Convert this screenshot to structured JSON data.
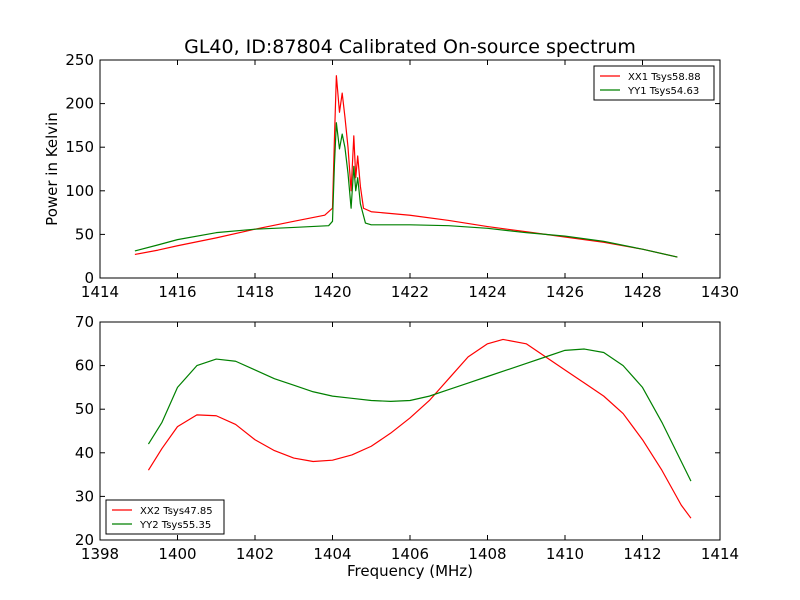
{
  "figure_title": "GL40, ID:87804 Calibrated On-source spectrum",
  "chart_data": [
    {
      "type": "line",
      "ylabel": "Power in Kelvin",
      "xlabel": "",
      "xlim": [
        1414,
        1430
      ],
      "ylim": [
        0,
        250
      ],
      "xticks": [
        1414,
        1416,
        1418,
        1420,
        1422,
        1424,
        1426,
        1428,
        1430
      ],
      "yticks": [
        0,
        50,
        100,
        150,
        200,
        250
      ],
      "grid": false,
      "legend_position": "top-right",
      "series": [
        {
          "name": "XX1 Tsys58.88",
          "color": "#ff0000",
          "points": [
            [
              1414.9,
              27
            ],
            [
              1415.5,
              32
            ],
            [
              1416.0,
              37
            ],
            [
              1417.0,
              46
            ],
            [
              1418.0,
              56
            ],
            [
              1419.0,
              65
            ],
            [
              1419.8,
              72
            ],
            [
              1420.0,
              80
            ],
            [
              1420.05,
              160
            ],
            [
              1420.1,
              232
            ],
            [
              1420.18,
              190
            ],
            [
              1420.25,
              212
            ],
            [
              1420.32,
              185
            ],
            [
              1420.4,
              150
            ],
            [
              1420.48,
              100
            ],
            [
              1420.55,
              163
            ],
            [
              1420.6,
              115
            ],
            [
              1420.65,
              140
            ],
            [
              1420.72,
              105
            ],
            [
              1420.8,
              80
            ],
            [
              1421.0,
              76
            ],
            [
              1422.0,
              72
            ],
            [
              1423.0,
              66
            ],
            [
              1424.0,
              59
            ],
            [
              1425.0,
              53
            ],
            [
              1426.0,
              47
            ],
            [
              1427.0,
              41
            ],
            [
              1428.0,
              33
            ],
            [
              1428.9,
              24
            ]
          ]
        },
        {
          "name": "YY1 Tsys54.63",
          "color": "#008000",
          "points": [
            [
              1414.9,
              31
            ],
            [
              1415.5,
              38
            ],
            [
              1416.0,
              44
            ],
            [
              1417.0,
              52
            ],
            [
              1418.0,
              56
            ],
            [
              1419.0,
              58
            ],
            [
              1419.9,
              60
            ],
            [
              1420.0,
              65
            ],
            [
              1420.05,
              130
            ],
            [
              1420.1,
              178
            ],
            [
              1420.18,
              148
            ],
            [
              1420.25,
              165
            ],
            [
              1420.32,
              150
            ],
            [
              1420.4,
              120
            ],
            [
              1420.48,
              80
            ],
            [
              1420.55,
              128
            ],
            [
              1420.6,
              100
            ],
            [
              1420.65,
              115
            ],
            [
              1420.72,
              85
            ],
            [
              1420.85,
              63
            ],
            [
              1421.0,
              61
            ],
            [
              1422.0,
              61
            ],
            [
              1423.0,
              60
            ],
            [
              1424.0,
              57
            ],
            [
              1425.0,
              52
            ],
            [
              1426.0,
              48
            ],
            [
              1427.0,
              42
            ],
            [
              1428.0,
              33
            ],
            [
              1428.9,
              24
            ]
          ]
        }
      ]
    },
    {
      "type": "line",
      "xlabel": "Frequency (MHz)",
      "ylabel": "",
      "xlim": [
        1398,
        1414
      ],
      "ylim": [
        20,
        70
      ],
      "xticks": [
        1398,
        1400,
        1402,
        1404,
        1406,
        1408,
        1410,
        1412,
        1414
      ],
      "yticks": [
        20,
        30,
        40,
        50,
        60,
        70
      ],
      "grid": false,
      "legend_position": "bottom-left",
      "series": [
        {
          "name": "XX2 Tsys47.85",
          "color": "#ff0000",
          "points": [
            [
              1399.25,
              36
            ],
            [
              1399.6,
              41
            ],
            [
              1400.0,
              46
            ],
            [
              1400.5,
              48.7
            ],
            [
              1401.0,
              48.5
            ],
            [
              1401.5,
              46.5
            ],
            [
              1402.0,
              43
            ],
            [
              1402.5,
              40.5
            ],
            [
              1403.0,
              38.8
            ],
            [
              1403.5,
              38
            ],
            [
              1404.0,
              38.3
            ],
            [
              1404.5,
              39.5
            ],
            [
              1405.0,
              41.5
            ],
            [
              1405.5,
              44.5
            ],
            [
              1406.0,
              48
            ],
            [
              1406.5,
              52
            ],
            [
              1407.0,
              57
            ],
            [
              1407.5,
              62
            ],
            [
              1408.0,
              65
            ],
            [
              1408.4,
              66
            ],
            [
              1409.0,
              65
            ],
            [
              1409.5,
              62
            ],
            [
              1410.0,
              59
            ],
            [
              1410.5,
              56
            ],
            [
              1411.0,
              53
            ],
            [
              1411.5,
              49
            ],
            [
              1412.0,
              43
            ],
            [
              1412.5,
              36
            ],
            [
              1413.0,
              28
            ],
            [
              1413.25,
              25
            ]
          ]
        },
        {
          "name": "YY2 Tsys55.35",
          "color": "#008000",
          "points": [
            [
              1399.25,
              42
            ],
            [
              1399.6,
              47
            ],
            [
              1400.0,
              55
            ],
            [
              1400.5,
              60
            ],
            [
              1401.0,
              61.5
            ],
            [
              1401.5,
              61
            ],
            [
              1402.0,
              59
            ],
            [
              1402.5,
              57
            ],
            [
              1403.0,
              55.5
            ],
            [
              1403.5,
              54
            ],
            [
              1404.0,
              53
            ],
            [
              1404.5,
              52.5
            ],
            [
              1405.0,
              52
            ],
            [
              1405.5,
              51.8
            ],
            [
              1406.0,
              52
            ],
            [
              1406.5,
              53
            ],
            [
              1407.0,
              54.5
            ],
            [
              1407.5,
              56
            ],
            [
              1408.0,
              57.5
            ],
            [
              1408.5,
              59
            ],
            [
              1409.0,
              60.5
            ],
            [
              1409.5,
              62
            ],
            [
              1410.0,
              63.5
            ],
            [
              1410.5,
              63.8
            ],
            [
              1411.0,
              63
            ],
            [
              1411.5,
              60
            ],
            [
              1412.0,
              55
            ],
            [
              1412.5,
              47
            ],
            [
              1413.0,
              38
            ],
            [
              1413.25,
              33.5
            ]
          ]
        }
      ]
    }
  ]
}
